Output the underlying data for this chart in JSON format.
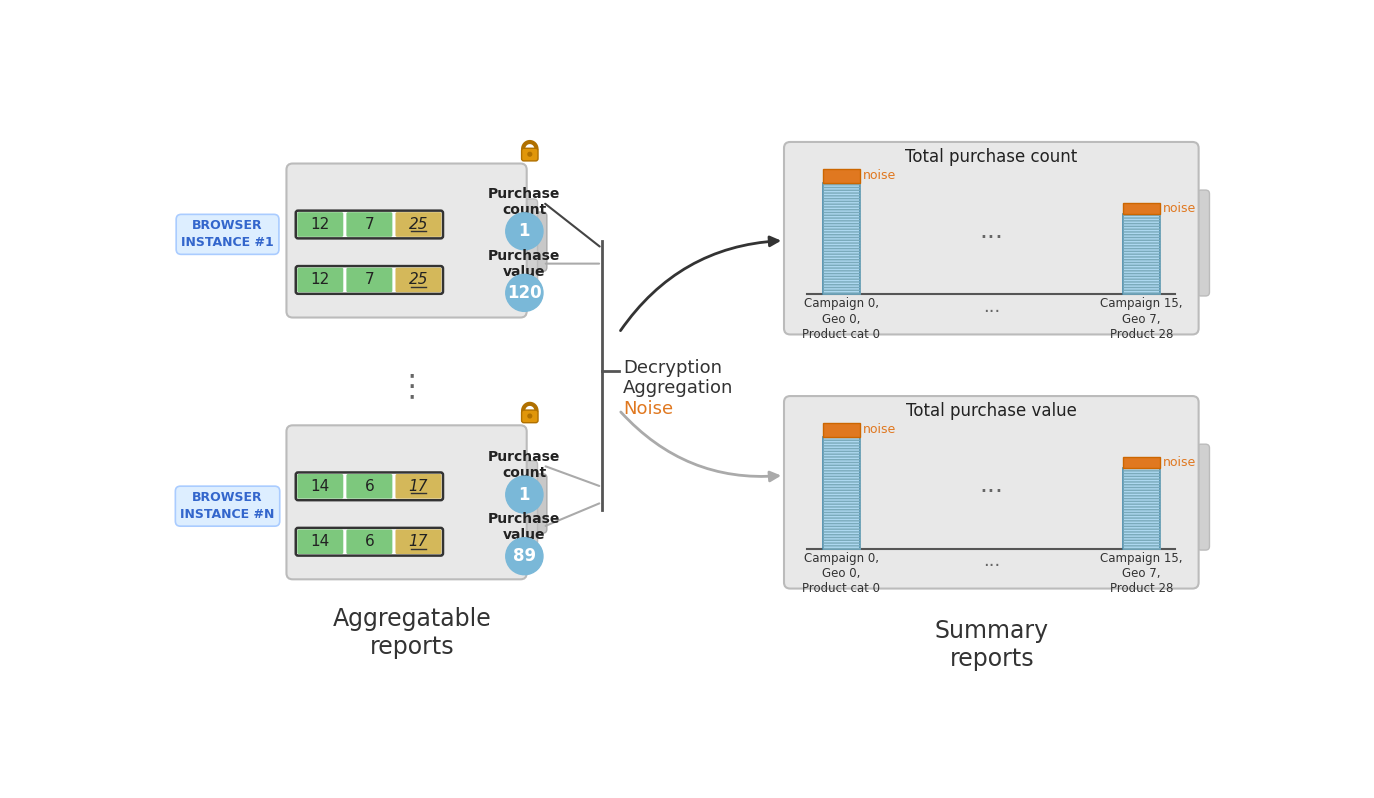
{
  "bg_color": "#ffffff",
  "browser1_label": "BROWSER\nINSTANCE #1",
  "browserN_label": "BROWSER\nINSTANCE #N",
  "report1_rows": [
    {
      "nums": [
        "12",
        "7",
        "25"
      ],
      "colors": [
        "#7dc87d",
        "#7dc87d",
        "#d4b85a"
      ]
    },
    {
      "nums": [
        "12",
        "7",
        "25"
      ],
      "colors": [
        "#7dc87d",
        "#7dc87d",
        "#d4b85a"
      ]
    }
  ],
  "reportN_rows": [
    {
      "nums": [
        "14",
        "6",
        "17"
      ],
      "colors": [
        "#7dc87d",
        "#7dc87d",
        "#d4b85a"
      ]
    },
    {
      "nums": [
        "14",
        "6",
        "17"
      ],
      "colors": [
        "#7dc87d",
        "#7dc87d",
        "#d4b85a"
      ]
    }
  ],
  "report1_count": "1",
  "report1_value": "120",
  "reportN_count": "1",
  "reportN_value": "89",
  "middle_texts": [
    "Decryption",
    "Aggregation",
    "Noise"
  ],
  "middle_colors": [
    "#333333",
    "#333333",
    "#e07820"
  ],
  "summary_title1": "Total purchase count",
  "summary_title2": "Total purchase value",
  "bar_blue": "#add8f0",
  "bar_blue_edge": "#4488aa",
  "noise_color": "#e07820",
  "noise_edge": "#cc6600",
  "xlbl_left": "Campaign 0,\nGeo 0,\nProduct cat 0",
  "xlbl_mid": "...",
  "xlbl_right": "Campaign 15,\nGeo 7,\nProduct 28",
  "bottom_label1": "Aggregatable\nreports",
  "bottom_label2": "Summary\nreports",
  "browser_bg": "#ddeeff",
  "browser_edge": "#aaccff",
  "browser_color": "#3366cc",
  "card_bg": "#e8e8e8",
  "card_edge": "#bbbbbb",
  "circle_color": "#7ab8d8",
  "lock_color": "#e0960a"
}
